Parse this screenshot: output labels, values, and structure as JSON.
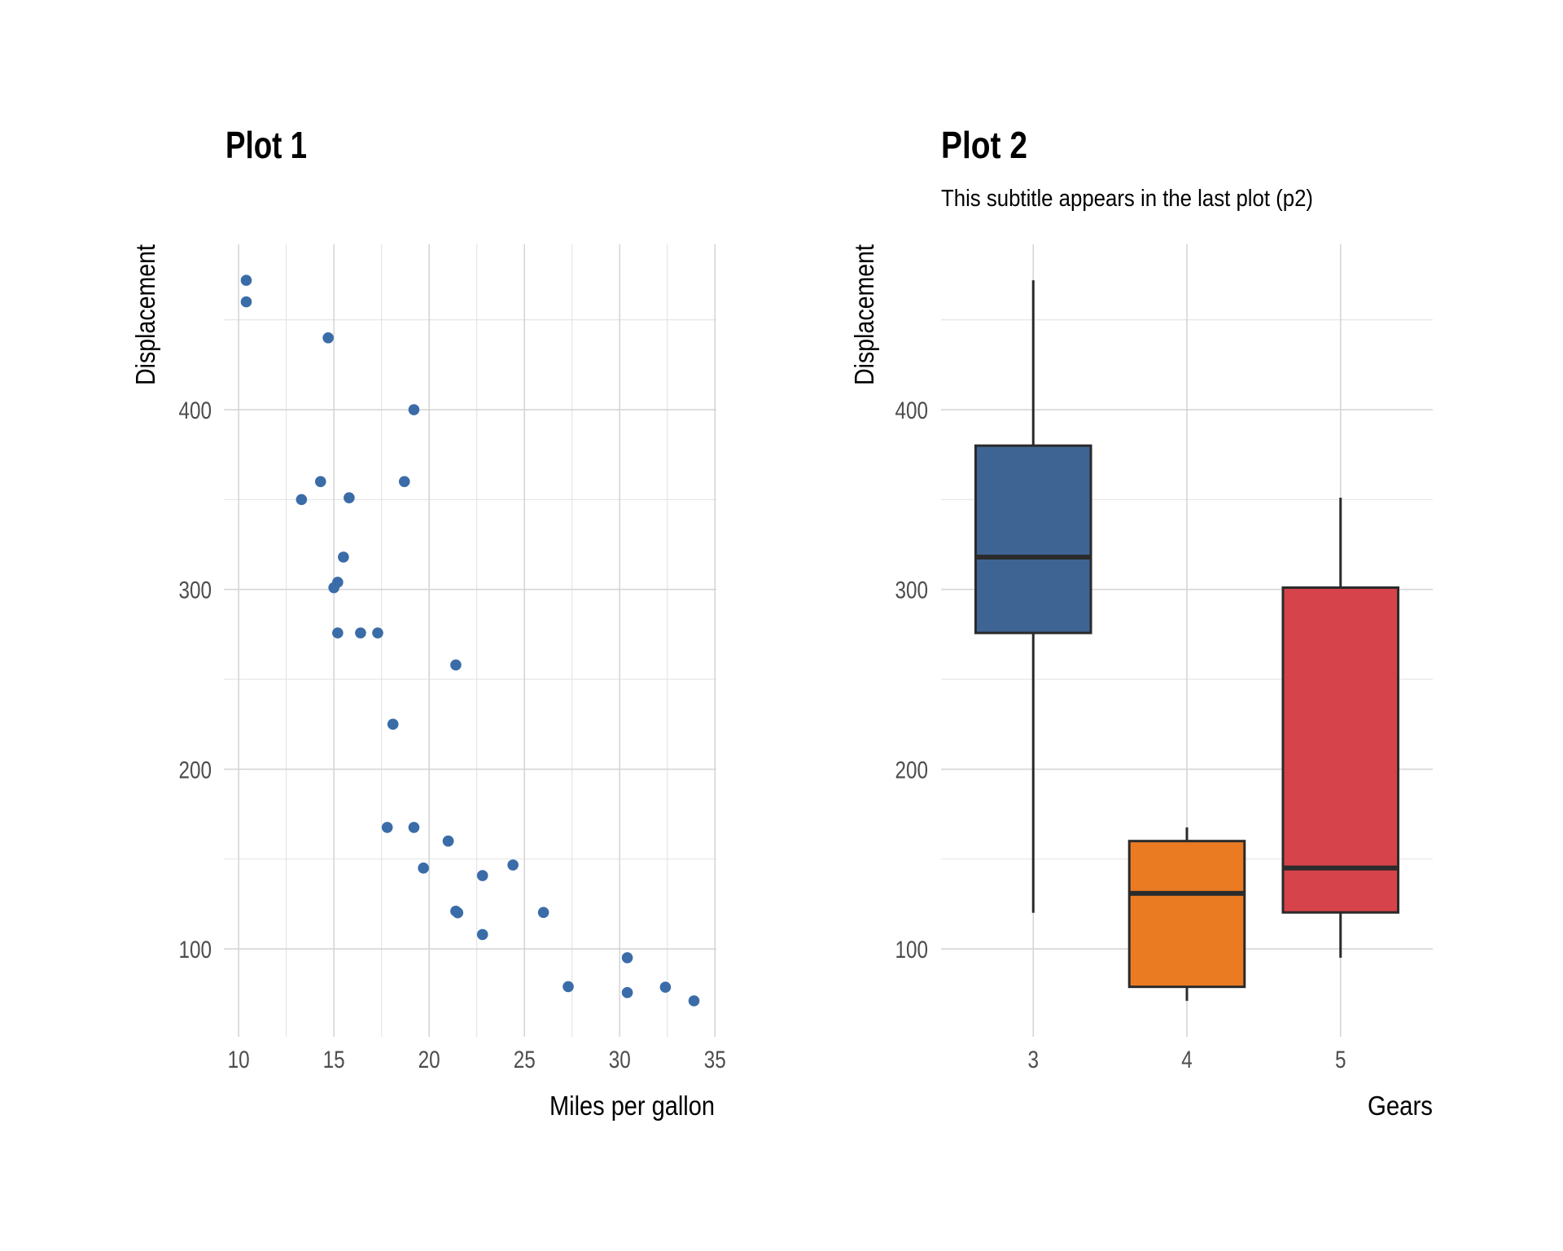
{
  "chart_data": [
    {
      "type": "scatter",
      "title": "Plot 1",
      "subtitle": "",
      "xlabel": "Miles per gallon",
      "ylabel": "Displacement",
      "xlim": [
        9.225,
        35.075
      ],
      "ylim": [
        51.1,
        492.0
      ],
      "xticks": [
        10,
        15,
        20,
        25,
        30,
        35
      ],
      "xtick_labels": [
        "10",
        "15",
        "20",
        "25",
        "30",
        "35"
      ],
      "xminor": [
        12.5,
        17.5,
        22.5,
        27.5,
        32.5
      ],
      "yticks": [
        100,
        200,
        300,
        400
      ],
      "ytick_labels": [
        "100",
        "200",
        "300",
        "400"
      ],
      "yminor": [
        150,
        250,
        350,
        450
      ],
      "grid": true,
      "point_color": "#3a6ca8",
      "x": [
        21.0,
        21.0,
        22.8,
        21.4,
        18.7,
        18.1,
        14.3,
        24.4,
        22.8,
        19.2,
        17.8,
        16.4,
        17.3,
        15.2,
        10.4,
        10.4,
        14.7,
        32.4,
        30.4,
        33.9,
        21.5,
        15.5,
        15.2,
        13.3,
        19.2,
        27.3,
        26.0,
        30.4,
        15.8,
        19.7,
        15.0,
        21.4
      ],
      "y": [
        160.0,
        160.0,
        108.0,
        258.0,
        360.0,
        225.0,
        360.0,
        146.7,
        140.8,
        167.6,
        167.6,
        275.8,
        275.8,
        275.8,
        472.0,
        460.0,
        440.0,
        78.7,
        75.7,
        71.1,
        120.1,
        318.0,
        304.0,
        350.0,
        400.0,
        79.0,
        120.3,
        95.1,
        351.0,
        145.0,
        301.0,
        121.0
      ]
    },
    {
      "type": "box",
      "title": "Plot 2",
      "subtitle": "This subtitle appears in the last plot (p2)",
      "xlabel": "Gears",
      "ylabel": "Displacement",
      "ylim": [
        51.1,
        492.0
      ],
      "yticks": [
        100,
        200,
        300,
        400
      ],
      "ytick_labels": [
        "100",
        "200",
        "300",
        "400"
      ],
      "yminor": [
        150,
        250,
        350,
        450
      ],
      "grid": true,
      "categories": [
        "3",
        "4",
        "5"
      ],
      "boxes": [
        {
          "category": "3",
          "min": 120.1,
          "q1": 275.8,
          "median": 318.0,
          "q3": 380.0,
          "max": 472.0,
          "color": "#3e6494"
        },
        {
          "category": "4",
          "min": 71.1,
          "q1": 78.9,
          "median": 130.9,
          "q3": 160.0,
          "max": 167.6,
          "color": "#eb7b23"
        },
        {
          "category": "5",
          "min": 95.1,
          "q1": 120.3,
          "median": 145.0,
          "q3": 301.0,
          "max": 351.0,
          "color": "#d7434a"
        }
      ]
    }
  ]
}
